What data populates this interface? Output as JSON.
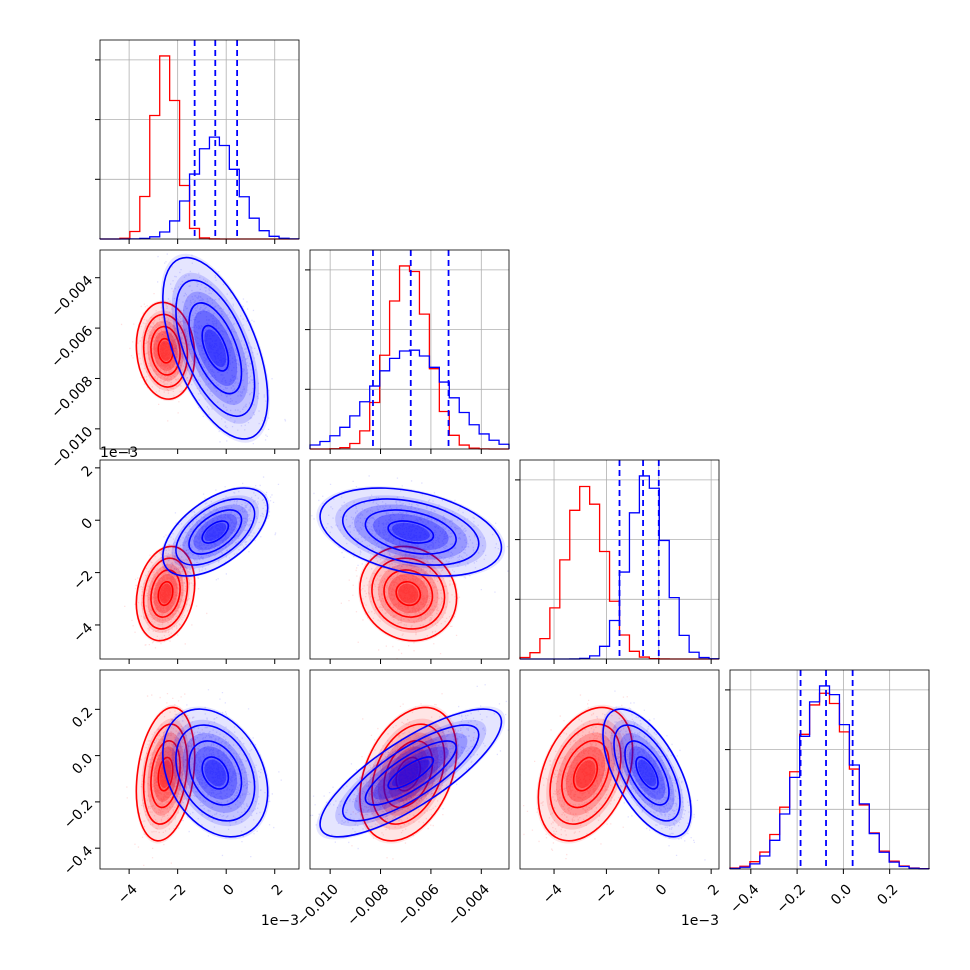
{
  "chart_data": {
    "type": "corner",
    "grid": true,
    "colors": {
      "series_a": "#0000ff",
      "series_b": "#ff0000"
    },
    "params": [
      {
        "range": [
          -5.2,
          3.0
        ],
        "ticks": [
          -4,
          -2,
          0,
          2
        ],
        "tick_labels": [
          "−4",
          "−2",
          "0",
          "2"
        ],
        "offset_label": "1e−3"
      },
      {
        "range": [
          -0.0108,
          -0.0029
        ],
        "ticks": [
          -0.01,
          -0.008,
          -0.006,
          -0.004
        ],
        "tick_labels": [
          "−0.010",
          "−0.008",
          "−0.006",
          "−0.004"
        ],
        "offset_label": ""
      },
      {
        "range": [
          -5.3,
          2.3
        ],
        "ticks": [
          -4,
          -2,
          0,
          2
        ],
        "tick_labels": [
          "−4",
          "−2",
          "0",
          "2"
        ],
        "offset_label": "1e−3"
      },
      {
        "range": [
          -0.49,
          0.37
        ],
        "ticks": [
          -0.4,
          -0.2,
          0.0,
          0.2
        ],
        "tick_labels": [
          "−0.4",
          "−0.2",
          "0.0",
          "0.2"
        ],
        "offset_label": ""
      }
    ],
    "series": [
      {
        "key": "series_a",
        "marginals": [
          {
            "mean": -0.45,
            "sd": 0.9,
            "quantiles": [
              -1.3,
              -0.45,
              0.45
            ]
          },
          {
            "mean": -0.0068,
            "sd": 0.0015,
            "quantiles": [
              -0.0083,
              -0.0068,
              -0.0053
            ]
          },
          {
            "mean": -0.45,
            "sd": 0.7,
            "quantiles": [
              -1.5,
              -0.6,
              0.0
            ]
          },
          {
            "mean": -0.075,
            "sd": 0.115,
            "quantiles": [
              -0.185,
              -0.075,
              0.04
            ]
          }
        ],
        "correlations": [
          [
            1,
            0,
            0,
            0
          ],
          [
            -0.55,
            1,
            0,
            0
          ],
          [
            0.55,
            -0.35,
            1,
            0
          ],
          [
            -0.3,
            0.8,
            -0.6,
            1
          ]
        ]
      },
      {
        "key": "series_b",
        "marginals": [
          {
            "mean": -2.5,
            "sd": 0.5,
            "quantiles": [
              -3.0,
              -2.5,
              -2.0
            ]
          },
          {
            "mean": -0.0069,
            "sd": 0.0008,
            "quantiles": [
              -0.0077,
              -0.0069,
              -0.0061
            ]
          },
          {
            "mean": -2.8,
            "sd": 0.75,
            "quantiles": [
              -3.55,
              -2.8,
              -2.05
            ]
          },
          {
            "mean": -0.08,
            "sd": 0.12,
            "quantiles": [
              -0.2,
              -0.08,
              0.04
            ]
          }
        ],
        "correlations": [
          [
            1,
            0,
            0,
            0
          ],
          [
            -0.1,
            1,
            0,
            0
          ],
          [
            0.2,
            -0.1,
            1,
            0
          ],
          [
            0.25,
            0.35,
            0.35,
            1
          ]
        ]
      }
    ]
  }
}
